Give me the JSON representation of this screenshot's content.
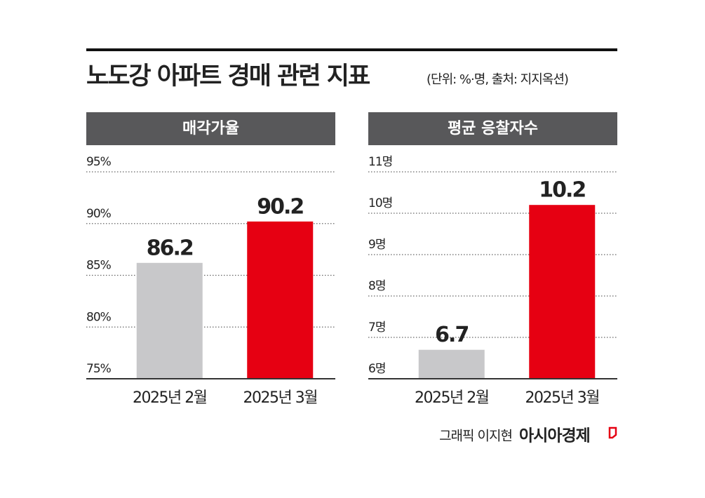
{
  "header": {
    "title": "노도강 아파트 경매 관련 지표",
    "subtitle": "(단위: %·명, 출처: 지지옥션)"
  },
  "chart_data": [
    {
      "type": "bar",
      "title": "매각가율",
      "categories": [
        "2025년 2월",
        "2025년 3월"
      ],
      "values": [
        86.2,
        90.2
      ],
      "colors": [
        "#c8c8ca",
        "#e60012"
      ],
      "ylim": [
        75,
        95
      ],
      "yticks": [
        {
          "value": 75,
          "label": "75%"
        },
        {
          "value": 80,
          "label": "80%"
        },
        {
          "value": 85,
          "label": "85%"
        },
        {
          "value": 90,
          "label": "90%"
        },
        {
          "value": 95,
          "label": "95%"
        }
      ],
      "grid": true
    },
    {
      "type": "bar",
      "title": "평균 응찰자수",
      "categories": [
        "2025년 2월",
        "2025년 3월"
      ],
      "values": [
        6.7,
        10.2
      ],
      "colors": [
        "#c8c8ca",
        "#e60012"
      ],
      "ylim": [
        6,
        11
      ],
      "yticks": [
        {
          "value": 6,
          "label": "6명"
        },
        {
          "value": 7,
          "label": "7명"
        },
        {
          "value": 8,
          "label": "8명"
        },
        {
          "value": 9,
          "label": "9명"
        },
        {
          "value": 10,
          "label": "10명"
        },
        {
          "value": 11,
          "label": "11명"
        }
      ],
      "grid": true
    }
  ],
  "footer": {
    "credit": "그래픽 이지현",
    "brand": "아시아경제"
  }
}
